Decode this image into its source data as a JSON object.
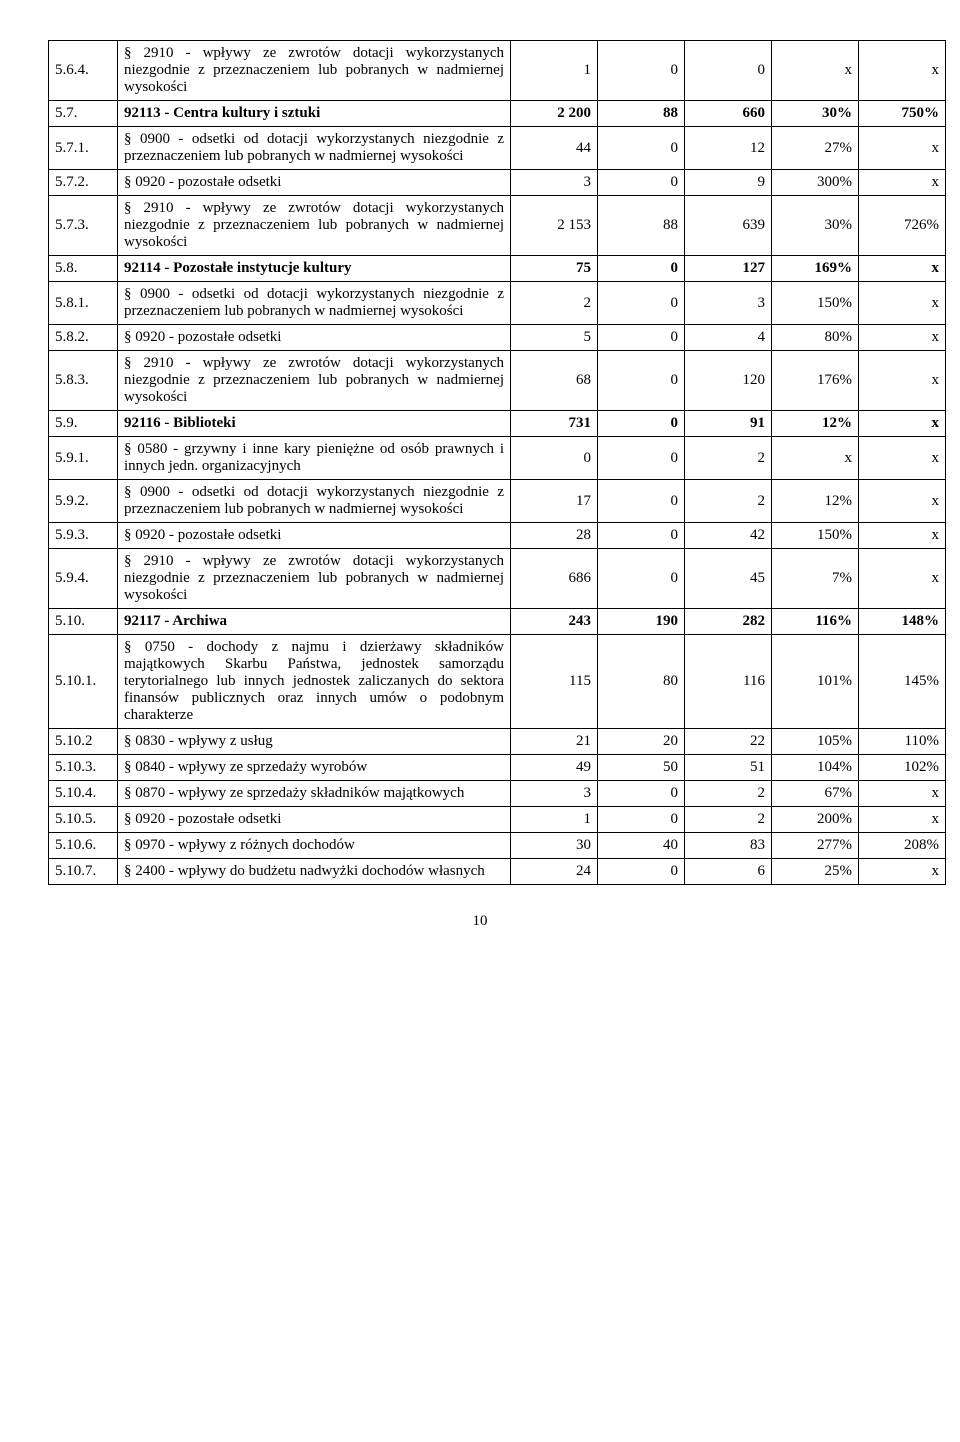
{
  "page_number": "10",
  "rows": [
    {
      "id": "5.6.4.",
      "desc": "§ 2910 - wpływy ze zwrotów dotacji wykorzystanych niezgodnie z przeznaczeniem lub pobranych w nadmiernej wysokości",
      "c1": "1",
      "c2": "0",
      "c3": "0",
      "c4": "x",
      "c5": "x",
      "section": false
    },
    {
      "id": "5.7.",
      "desc": "92113 - Centra kultury i sztuki",
      "c1": "2 200",
      "c2": "88",
      "c3": "660",
      "c4": "30%",
      "c5": "750%",
      "section": true
    },
    {
      "id": "5.7.1.",
      "desc": "§ 0900 - odsetki od dotacji wykorzystanych niezgodnie z przeznaczeniem lub pobranych w nadmiernej wysokości",
      "c1": "44",
      "c2": "0",
      "c3": "12",
      "c4": "27%",
      "c5": "x",
      "section": false
    },
    {
      "id": "5.7.2.",
      "desc": "§ 0920 - pozostałe odsetki",
      "c1": "3",
      "c2": "0",
      "c3": "9",
      "c4": "300%",
      "c5": "x",
      "section": false
    },
    {
      "id": "5.7.3.",
      "desc": "§ 2910 - wpływy ze zwrotów dotacji wykorzystanych niezgodnie z przeznaczeniem lub pobranych w nadmiernej wysokości",
      "c1": "2 153",
      "c2": "88",
      "c3": "639",
      "c4": "30%",
      "c5": "726%",
      "section": false
    },
    {
      "id": "5.8.",
      "desc": "92114 - Pozostałe instytucje kultury",
      "c1": "75",
      "c2": "0",
      "c3": "127",
      "c4": "169%",
      "c5": "x",
      "section": true
    },
    {
      "id": "5.8.1.",
      "desc": "§ 0900 - odsetki od dotacji wykorzystanych niezgodnie z przeznaczeniem lub pobranych w nadmiernej wysokości",
      "c1": "2",
      "c2": "0",
      "c3": "3",
      "c4": "150%",
      "c5": "x",
      "section": false
    },
    {
      "id": "5.8.2.",
      "desc": "§ 0920 - pozostałe odsetki",
      "c1": "5",
      "c2": "0",
      "c3": "4",
      "c4": "80%",
      "c5": "x",
      "section": false
    },
    {
      "id": "5.8.3.",
      "desc": "§ 2910 - wpływy ze zwrotów dotacji wykorzystanych niezgodnie z przeznaczeniem lub pobranych w nadmiernej wysokości",
      "c1": "68",
      "c2": "0",
      "c3": "120",
      "c4": "176%",
      "c5": "x",
      "section": false
    },
    {
      "id": "5.9.",
      "desc": "92116 - Biblioteki",
      "c1": "731",
      "c2": "0",
      "c3": "91",
      "c4": "12%",
      "c5": "x",
      "section": true
    },
    {
      "id": "5.9.1.",
      "desc": "§ 0580 - grzywny i inne kary pieniężne od osób prawnych i innych jedn. organizacyjnych",
      "c1": "0",
      "c2": "0",
      "c3": "2",
      "c4": "x",
      "c5": "x",
      "section": false
    },
    {
      "id": "5.9.2.",
      "desc": "§ 0900 - odsetki od dotacji wykorzystanych niezgodnie z przeznaczeniem lub pobranych w nadmiernej wysokości",
      "c1": "17",
      "c2": "0",
      "c3": "2",
      "c4": "12%",
      "c5": "x",
      "section": false
    },
    {
      "id": "5.9.3.",
      "desc": "§ 0920 - pozostałe odsetki",
      "c1": "28",
      "c2": "0",
      "c3": "42",
      "c4": "150%",
      "c5": "x",
      "section": false
    },
    {
      "id": "5.9.4.",
      "desc": "§ 2910 - wpływy ze zwrotów dotacji wykorzystanych niezgodnie z przeznaczeniem lub pobranych w nadmiernej wysokości",
      "c1": "686",
      "c2": "0",
      "c3": "45",
      "c4": "7%",
      "c5": "x",
      "section": false
    },
    {
      "id": "5.10.",
      "desc": "92117 - Archiwa",
      "c1": "243",
      "c2": "190",
      "c3": "282",
      "c4": "116%",
      "c5": "148%",
      "section": true
    },
    {
      "id": "5.10.1.",
      "desc": "§ 0750 - dochody z najmu i dzierżawy składników majątkowych Skarbu Państwa, jednostek samorządu terytorialnego lub innych jednostek zaliczanych do sektora finansów publicznych oraz innych umów o podobnym charakterze",
      "c1": "115",
      "c2": "80",
      "c3": "116",
      "c4": "101%",
      "c5": "145%",
      "section": false
    },
    {
      "id": "5.10.2",
      "desc": "§ 0830  - wpływy z usług",
      "c1": "21",
      "c2": "20",
      "c3": "22",
      "c4": "105%",
      "c5": "110%",
      "section": false
    },
    {
      "id": "5.10.3.",
      "desc": "§ 0840 - wpływy ze sprzedaży wyrobów",
      "c1": "49",
      "c2": "50",
      "c3": "51",
      "c4": "104%",
      "c5": "102%",
      "section": false
    },
    {
      "id": "5.10.4.",
      "desc": "§ 0870 - wpływy ze sprzedaży składników majątkowych",
      "c1": "3",
      "c2": "0",
      "c3": "2",
      "c4": "67%",
      "c5": "x",
      "section": false
    },
    {
      "id": "5.10.5.",
      "desc": "§ 0920 - pozostałe odsetki",
      "c1": "1",
      "c2": "0",
      "c3": "2",
      "c4": "200%",
      "c5": "x",
      "section": false
    },
    {
      "id": "5.10.6.",
      "desc": "§ 0970 - wpływy z różnych dochodów",
      "c1": "30",
      "c2": "40",
      "c3": "83",
      "c4": "277%",
      "c5": "208%",
      "section": false
    },
    {
      "id": "5.10.7.",
      "desc": "§ 2400 - wpływy do budżetu nadwyżki dochodów własnych",
      "c1": "24",
      "c2": "0",
      "c3": "6",
      "c4": "25%",
      "c5": "x",
      "section": false
    }
  ]
}
